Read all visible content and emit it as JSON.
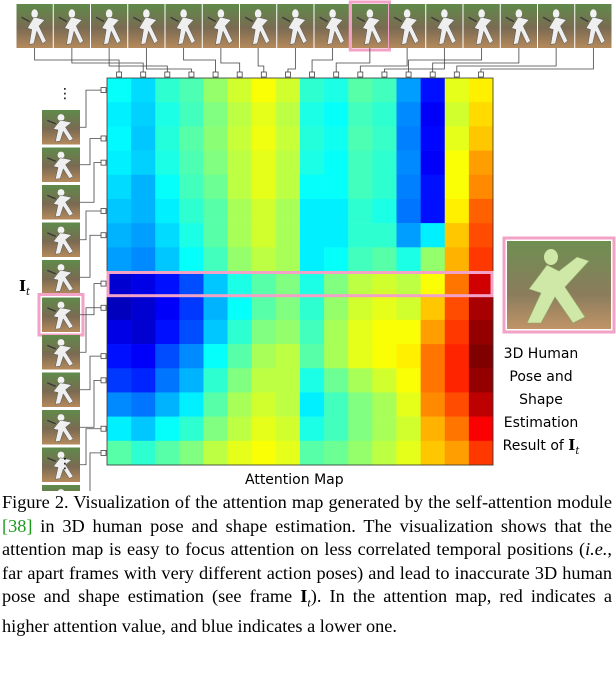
{
  "figure": {
    "attention_map_label": "Attention Map",
    "frame_label": "I",
    "frame_label_subscript": "t",
    "result_label_lines": [
      "3D Human",
      "Pose and",
      "Shape",
      "Estimation"
    ],
    "result_label_last_prefix": "Result of ",
    "result_label_last_symbol": "I",
    "result_label_last_subscript": "t",
    "ellipsis": "⋮",
    "highlight_color": "#f2a2c6",
    "top_frame_count": 16,
    "side_frame_count": 11,
    "highlighted_top_frame_index": 9,
    "highlighted_side_frame_index": 5
  },
  "attention_map": {
    "rows": 16,
    "cols": 16,
    "highlighted_row": 8,
    "colormap": "jet",
    "values": [
      [
        0.38,
        0.34,
        0.42,
        0.45,
        0.52,
        0.58,
        0.62,
        0.58,
        0.42,
        0.4,
        0.46,
        0.44,
        0.28,
        0.14,
        0.6,
        0.64
      ],
      [
        0.36,
        0.33,
        0.4,
        0.44,
        0.5,
        0.56,
        0.6,
        0.56,
        0.4,
        0.38,
        0.44,
        0.42,
        0.26,
        0.12,
        0.58,
        0.66
      ],
      [
        0.37,
        0.32,
        0.41,
        0.46,
        0.51,
        0.57,
        0.61,
        0.57,
        0.41,
        0.39,
        0.45,
        0.43,
        0.25,
        0.13,
        0.6,
        0.68
      ],
      [
        0.36,
        0.33,
        0.4,
        0.45,
        0.5,
        0.56,
        0.6,
        0.56,
        0.4,
        0.38,
        0.44,
        0.42,
        0.26,
        0.12,
        0.62,
        0.72
      ],
      [
        0.34,
        0.3,
        0.38,
        0.44,
        0.48,
        0.56,
        0.6,
        0.56,
        0.38,
        0.38,
        0.44,
        0.42,
        0.25,
        0.14,
        0.62,
        0.74
      ],
      [
        0.32,
        0.3,
        0.36,
        0.42,
        0.46,
        0.54,
        0.58,
        0.54,
        0.36,
        0.36,
        0.42,
        0.4,
        0.24,
        0.14,
        0.64,
        0.78
      ],
      [
        0.3,
        0.28,
        0.34,
        0.4,
        0.46,
        0.54,
        0.58,
        0.54,
        0.36,
        0.36,
        0.42,
        0.42,
        0.28,
        0.36,
        0.68,
        0.8
      ],
      [
        0.28,
        0.26,
        0.32,
        0.38,
        0.44,
        0.52,
        0.56,
        0.54,
        0.36,
        0.38,
        0.44,
        0.46,
        0.4,
        0.52,
        0.7,
        0.82
      ],
      [
        0.08,
        0.1,
        0.14,
        0.2,
        0.32,
        0.4,
        0.46,
        0.5,
        0.4,
        0.5,
        0.56,
        0.58,
        0.56,
        0.62,
        0.76,
        0.92
      ],
      [
        0.06,
        0.08,
        0.12,
        0.18,
        0.3,
        0.38,
        0.46,
        0.5,
        0.42,
        0.52,
        0.58,
        0.6,
        0.58,
        0.68,
        0.8,
        0.96
      ],
      [
        0.1,
        0.08,
        0.14,
        0.2,
        0.32,
        0.42,
        0.5,
        0.52,
        0.44,
        0.54,
        0.6,
        0.62,
        0.62,
        0.72,
        0.82,
        0.98
      ],
      [
        0.14,
        0.12,
        0.2,
        0.26,
        0.38,
        0.46,
        0.54,
        0.56,
        0.46,
        0.54,
        0.6,
        0.62,
        0.64,
        0.76,
        0.84,
        1.0
      ],
      [
        0.18,
        0.16,
        0.24,
        0.3,
        0.42,
        0.5,
        0.56,
        0.56,
        0.4,
        0.48,
        0.54,
        0.58,
        0.62,
        0.76,
        0.84,
        0.98
      ],
      [
        0.26,
        0.24,
        0.3,
        0.36,
        0.46,
        0.54,
        0.58,
        0.56,
        0.36,
        0.44,
        0.5,
        0.54,
        0.6,
        0.74,
        0.8,
        0.94
      ],
      [
        0.36,
        0.32,
        0.38,
        0.42,
        0.5,
        0.56,
        0.6,
        0.58,
        0.4,
        0.44,
        0.5,
        0.54,
        0.58,
        0.7,
        0.76,
        0.88
      ],
      [
        0.46,
        0.42,
        0.46,
        0.5,
        0.56,
        0.6,
        0.62,
        0.6,
        0.46,
        0.48,
        0.52,
        0.56,
        0.6,
        0.68,
        0.72,
        0.82
      ]
    ]
  },
  "caption": {
    "label": "Figure 2.",
    "part1": " Visualization of the attention map generated by the self-attention module ",
    "citation": "[38]",
    "part2": " in 3D human pose and shape estimation. The visualization shows that the attention map is easy to focus attention on less correlated temporal positions (",
    "italic_ie": "i.e.",
    "part3": ", far apart frames with very different action poses) and lead to inaccurate 3D human pose and shape estimation (see frame ",
    "frame_symbol": "I",
    "frame_subscript": "t",
    "part4": "). In the attention map, red indicates a higher attention value, and blue indicates a lower one."
  }
}
